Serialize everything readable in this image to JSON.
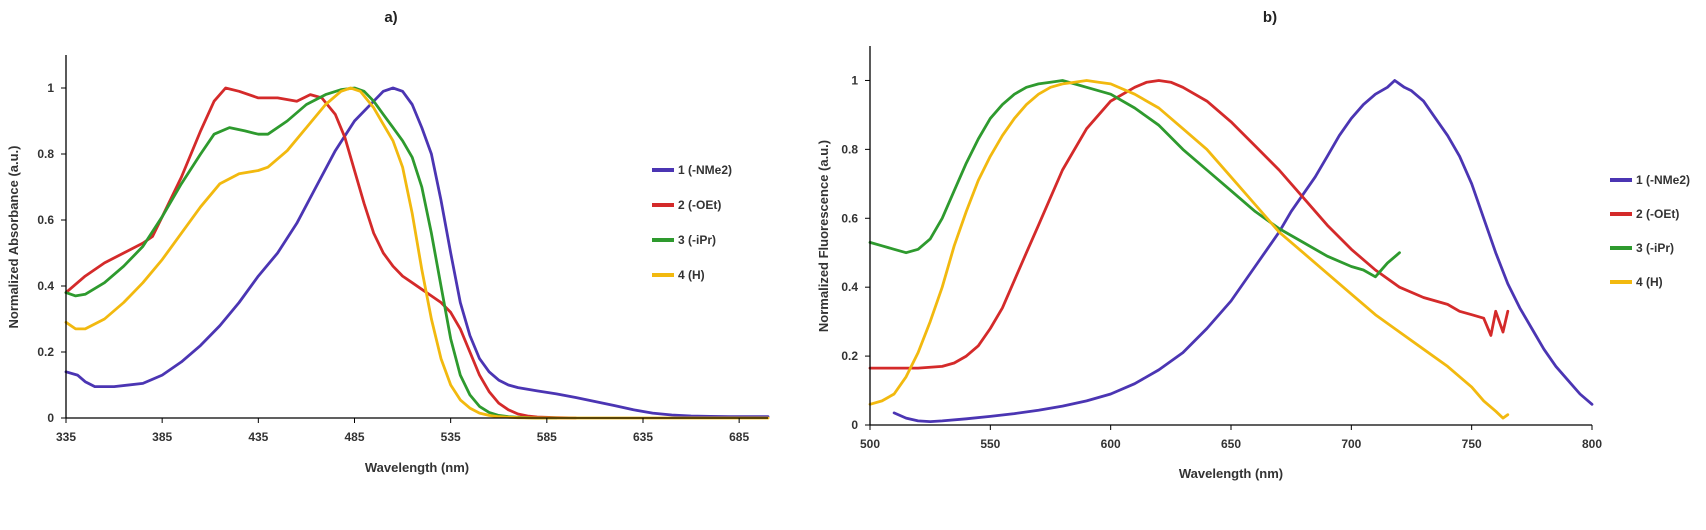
{
  "chart_data": [
    {
      "type": "line",
      "title": "a)",
      "xlabel": "Wavelength (nm)",
      "ylabel": "Normalized Absorbance (a.u.)",
      "xlim": [
        335,
        700
      ],
      "ylim": [
        0,
        1.1
      ],
      "xticks": [
        335,
        385,
        435,
        485,
        535,
        585,
        635,
        685
      ],
      "yticks": [
        0,
        0.2,
        0.4,
        0.6,
        0.8,
        1
      ],
      "ytick_labels": [
        "0",
        "0.2",
        "0.4",
        "0.6",
        "0.8",
        "1"
      ],
      "legend_position": "right",
      "series": [
        {
          "name": "1 (-NMe2)",
          "color": "#4b35b3",
          "x": [
            335,
            341,
            345,
            350,
            360,
            375,
            385,
            395,
            405,
            415,
            425,
            435,
            445,
            455,
            465,
            475,
            485,
            495,
            500,
            505,
            510,
            515,
            520,
            525,
            530,
            535,
            540,
            545,
            550,
            555,
            560,
            565,
            570,
            575,
            580,
            590,
            600,
            610,
            620,
            630,
            640,
            650,
            660,
            670,
            680,
            690,
            700
          ],
          "y": [
            0.14,
            0.13,
            0.11,
            0.095,
            0.095,
            0.105,
            0.13,
            0.17,
            0.22,
            0.28,
            0.35,
            0.43,
            0.5,
            0.59,
            0.7,
            0.81,
            0.9,
            0.96,
            0.99,
            1.0,
            0.99,
            0.95,
            0.88,
            0.8,
            0.66,
            0.5,
            0.35,
            0.25,
            0.18,
            0.14,
            0.115,
            0.1,
            0.092,
            0.087,
            0.082,
            0.073,
            0.062,
            0.05,
            0.038,
            0.025,
            0.015,
            0.009,
            0.006,
            0.005,
            0.004,
            0.004,
            0.004
          ]
        },
        {
          "name": "2 (-OEt)",
          "color": "#d42a2a",
          "x": [
            335,
            345,
            355,
            365,
            375,
            380,
            385,
            395,
            405,
            412,
            418,
            425,
            435,
            445,
            455,
            462,
            468,
            475,
            480,
            485,
            490,
            495,
            500,
            505,
            510,
            515,
            520,
            525,
            530,
            535,
            540,
            545,
            550,
            555,
            560,
            565,
            570,
            575,
            580,
            590,
            600
          ],
          "y": [
            0.38,
            0.43,
            0.47,
            0.5,
            0.53,
            0.55,
            0.61,
            0.73,
            0.87,
            0.96,
            1.0,
            0.99,
            0.97,
            0.97,
            0.96,
            0.98,
            0.97,
            0.92,
            0.85,
            0.75,
            0.65,
            0.56,
            0.5,
            0.46,
            0.43,
            0.41,
            0.39,
            0.37,
            0.35,
            0.32,
            0.27,
            0.2,
            0.13,
            0.08,
            0.045,
            0.025,
            0.012,
            0.006,
            0.003,
            0.001,
            0.0
          ]
        },
        {
          "name": "3 (-iPr)",
          "color": "#2e9a2e",
          "x": [
            335,
            340,
            345,
            355,
            365,
            375,
            385,
            395,
            405,
            412,
            420,
            428,
            435,
            440,
            450,
            460,
            470,
            478,
            485,
            490,
            495,
            500,
            505,
            510,
            515,
            520,
            525,
            530,
            535,
            540,
            545,
            550,
            555,
            560,
            565,
            570,
            575,
            580,
            590
          ],
          "y": [
            0.38,
            0.37,
            0.375,
            0.41,
            0.46,
            0.52,
            0.61,
            0.71,
            0.8,
            0.86,
            0.88,
            0.87,
            0.86,
            0.86,
            0.9,
            0.95,
            0.98,
            0.995,
            1.0,
            0.99,
            0.96,
            0.92,
            0.88,
            0.84,
            0.79,
            0.7,
            0.56,
            0.4,
            0.24,
            0.13,
            0.07,
            0.035,
            0.017,
            0.008,
            0.004,
            0.002,
            0.001,
            0.0,
            0.0
          ]
        },
        {
          "name": "4 (H)",
          "color": "#f2b90f",
          "x": [
            335,
            340,
            345,
            355,
            365,
            375,
            385,
            395,
            405,
            415,
            425,
            435,
            440,
            450,
            460,
            470,
            478,
            483,
            488,
            495,
            500,
            505,
            510,
            515,
            520,
            525,
            530,
            535,
            540,
            545,
            550,
            555,
            560,
            570,
            580,
            600,
            650,
            700
          ],
          "y": [
            0.29,
            0.27,
            0.27,
            0.3,
            0.35,
            0.41,
            0.48,
            0.56,
            0.64,
            0.71,
            0.74,
            0.75,
            0.76,
            0.81,
            0.88,
            0.95,
            0.99,
            1.0,
            0.99,
            0.94,
            0.89,
            0.84,
            0.76,
            0.62,
            0.45,
            0.3,
            0.18,
            0.1,
            0.055,
            0.03,
            0.015,
            0.008,
            0.004,
            0.001,
            0.0,
            0.0,
            0.0,
            0.0
          ]
        }
      ]
    },
    {
      "type": "line",
      "title": "b)",
      "xlabel": "Wavelength (nm)",
      "ylabel": "Normalized Fluorescence (a.u.)",
      "xlim": [
        500,
        800
      ],
      "ylim": [
        0,
        1.1
      ],
      "xticks": [
        500,
        550,
        600,
        650,
        700,
        750,
        800
      ],
      "yticks": [
        0,
        0.2,
        0.4,
        0.6,
        0.8,
        1
      ],
      "ytick_labels": [
        "0",
        "0.2",
        "0.4",
        "0.6",
        "0.8",
        "1"
      ],
      "legend_position": "right",
      "series": [
        {
          "name": "1 (-NMe2)",
          "color": "#4b35b3",
          "x": [
            510,
            515,
            520,
            525,
            530,
            540,
            550,
            560,
            570,
            580,
            590,
            600,
            610,
            620,
            630,
            640,
            650,
            660,
            665,
            670,
            675,
            680,
            685,
            690,
            695,
            700,
            705,
            710,
            715,
            718,
            722,
            725,
            730,
            735,
            740,
            745,
            750,
            755,
            760,
            765,
            770,
            775,
            780,
            785,
            790,
            795,
            800
          ],
          "y": [
            0.035,
            0.02,
            0.012,
            0.01,
            0.012,
            0.018,
            0.025,
            0.033,
            0.043,
            0.055,
            0.07,
            0.09,
            0.12,
            0.16,
            0.21,
            0.28,
            0.36,
            0.46,
            0.51,
            0.56,
            0.62,
            0.67,
            0.72,
            0.78,
            0.84,
            0.89,
            0.93,
            0.96,
            0.98,
            1.0,
            0.98,
            0.97,
            0.94,
            0.89,
            0.84,
            0.78,
            0.7,
            0.6,
            0.5,
            0.41,
            0.34,
            0.28,
            0.22,
            0.17,
            0.13,
            0.09,
            0.06
          ]
        },
        {
          "name": "2 (-OEt)",
          "color": "#d42a2a",
          "x": [
            500,
            510,
            520,
            530,
            535,
            540,
            545,
            550,
            555,
            560,
            565,
            570,
            575,
            580,
            590,
            600,
            610,
            615,
            620,
            625,
            630,
            640,
            650,
            660,
            670,
            680,
            690,
            700,
            710,
            720,
            730,
            740,
            745,
            750,
            755,
            758,
            760,
            763,
            765
          ],
          "y": [
            0.165,
            0.165,
            0.165,
            0.17,
            0.18,
            0.2,
            0.23,
            0.28,
            0.34,
            0.42,
            0.5,
            0.58,
            0.66,
            0.74,
            0.86,
            0.94,
            0.98,
            0.995,
            1.0,
            0.995,
            0.98,
            0.94,
            0.88,
            0.81,
            0.74,
            0.66,
            0.58,
            0.51,
            0.45,
            0.4,
            0.37,
            0.35,
            0.33,
            0.32,
            0.31,
            0.26,
            0.33,
            0.27,
            0.33
          ]
        },
        {
          "name": "3 (-iPr)",
          "color": "#2e9a2e",
          "x": [
            500,
            505,
            510,
            515,
            520,
            525,
            530,
            535,
            540,
            545,
            550,
            555,
            560,
            565,
            570,
            575,
            580,
            585,
            590,
            600,
            610,
            620,
            630,
            640,
            650,
            660,
            670,
            680,
            690,
            700,
            705,
            710,
            715,
            720
          ],
          "y": [
            0.53,
            0.52,
            0.51,
            0.5,
            0.51,
            0.54,
            0.6,
            0.68,
            0.76,
            0.83,
            0.89,
            0.93,
            0.96,
            0.98,
            0.99,
            0.995,
            1.0,
            0.99,
            0.98,
            0.96,
            0.92,
            0.87,
            0.8,
            0.74,
            0.68,
            0.62,
            0.57,
            0.53,
            0.49,
            0.46,
            0.45,
            0.43,
            0.47,
            0.5
          ]
        },
        {
          "name": "4 (H)",
          "color": "#f2b90f",
          "x": [
            500,
            505,
            510,
            515,
            520,
            525,
            530,
            535,
            540,
            545,
            550,
            555,
            560,
            565,
            570,
            575,
            580,
            585,
            590,
            595,
            600,
            610,
            620,
            630,
            640,
            650,
            660,
            670,
            680,
            690,
            700,
            710,
            720,
            730,
            740,
            750,
            755,
            760,
            763,
            765
          ],
          "y": [
            0.06,
            0.07,
            0.09,
            0.14,
            0.21,
            0.3,
            0.4,
            0.52,
            0.62,
            0.71,
            0.78,
            0.84,
            0.89,
            0.93,
            0.96,
            0.98,
            0.99,
            0.995,
            1.0,
            0.995,
            0.99,
            0.96,
            0.92,
            0.86,
            0.8,
            0.72,
            0.64,
            0.56,
            0.5,
            0.44,
            0.38,
            0.32,
            0.27,
            0.22,
            0.17,
            0.11,
            0.07,
            0.04,
            0.02,
            0.03
          ]
        }
      ]
    }
  ]
}
